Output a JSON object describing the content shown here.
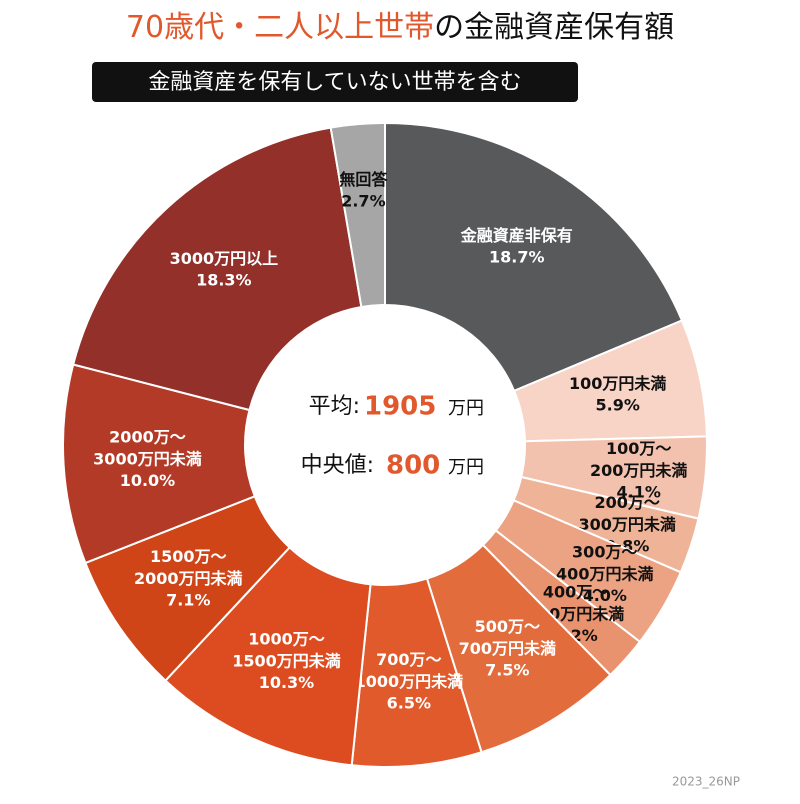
{
  "chart_data": {
    "type": "pie",
    "title_lead": "70歳代・二人以上世帯",
    "title": "の金融資産保有額",
    "subtitle": "金融資産を保有していない世帯を含む",
    "categories": [
      "金融資産非保有",
      "100万円未満",
      "100万〜\n200万円未満",
      "200万〜\n300万円未満",
      "300万〜\n400万円未満",
      "400万〜\n500万円未満",
      "500万〜\n700万円未満",
      "700万〜\n1000万円未満",
      "1000万〜\n1500万円未満",
      "1500万〜\n2000万円未満",
      "2000万〜\n3000万円未満",
      "3000万円以上",
      "無回答"
    ],
    "values": [
      18.7,
      5.9,
      4.1,
      2.8,
      4.0,
      2.2,
      7.5,
      6.5,
      10.3,
      7.1,
      10.0,
      18.3,
      2.7
    ],
    "value_labels": [
      "18.7%",
      "5.9%",
      "4.1%",
      "2.8%",
      "4.0%",
      "2.2%",
      "7.5%",
      "6.5%",
      "10.3%",
      "7.1%",
      "10.0%",
      "18.3%",
      "2.7%"
    ],
    "colors": [
      "#58595b",
      "#f7d4c6",
      "#f3c2ae",
      "#efb397",
      "#eba383",
      "#e8926e",
      "#e36c3d",
      "#e05a2b",
      "#dc4c20",
      "#cf4518",
      "#b33a26",
      "#93302a",
      "#a6a6a6"
    ],
    "center": {
      "mean_label": "平均:",
      "mean": 1905,
      "unit": "万円",
      "median_label": "中央値:",
      "median": 800
    },
    "source": "2023_26NP"
  }
}
